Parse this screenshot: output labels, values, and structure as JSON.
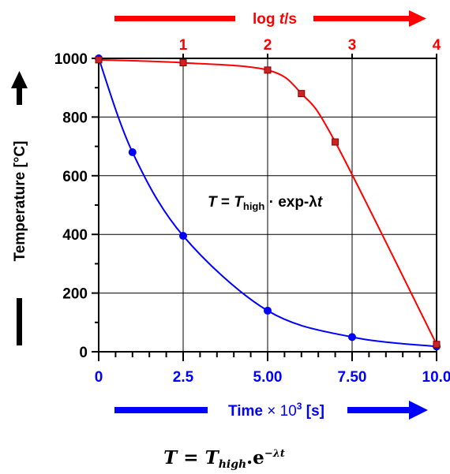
{
  "chart_data": {
    "type": "line",
    "title": "",
    "ylabel": "Temperature",
    "ylabel_unit": "[°C]",
    "xlabel_bottom": {
      "text": "Time",
      "multiplier": "× 10",
      "exponent": "3",
      "unit": "[s]"
    },
    "xlabel_top": {
      "prefix": "log ",
      "var": "t",
      "unit": "/s"
    },
    "ylim": [
      0,
      1000
    ],
    "xlim_bottom": [
      0,
      10
    ],
    "xlim_top": [
      0,
      4
    ],
    "yticks": [
      "0",
      "200",
      "400",
      "600",
      "800",
      "1000"
    ],
    "xticks_bottom": [
      "0",
      "2.5",
      "5.00",
      "7.50",
      "10.0"
    ],
    "xticks_top": [
      "1",
      "2",
      "3",
      "4"
    ],
    "annotation": {
      "T": "T",
      "equals": " = ",
      "Tsub_main": "T",
      "Tsub_sub": "high",
      "rest": " · exp-λ",
      "t": "t"
    },
    "caption": {
      "T": "T",
      "equals": " = ",
      "Th": "T",
      "sub": "high",
      "dot": ".e",
      "sup": "−λt"
    },
    "colors": {
      "red": "#ff0000",
      "blue": "#0000ff",
      "grid": "#000000"
    },
    "grid": true,
    "series": [
      {
        "color": "blue",
        "axis": "bottom",
        "x": [
          0,
          1.0,
          2.5,
          5.0,
          7.5,
          10.0
        ],
        "y": [
          1000,
          680,
          395,
          140,
          50,
          18
        ]
      },
      {
        "color": "red",
        "axis": "top",
        "x": [
          0,
          1.0,
          2.0,
          2.4,
          2.8,
          4.0
        ],
        "y": [
          995,
          985,
          960,
          880,
          715,
          25
        ]
      }
    ]
  }
}
